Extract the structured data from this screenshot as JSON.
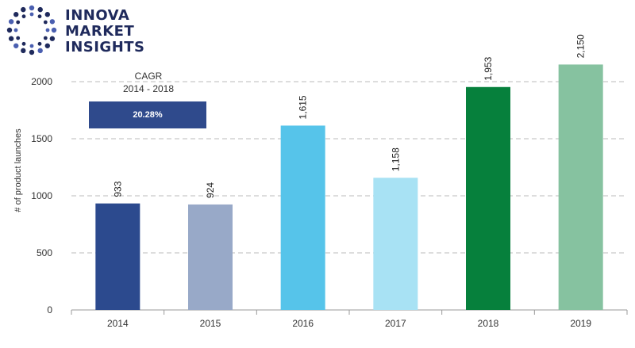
{
  "brand": {
    "lines": [
      "INNOVA",
      "MARKET",
      "INSIGHTS"
    ]
  },
  "cagr": {
    "label": "CAGR",
    "period": "2014 - 2018",
    "value": "20.28%"
  },
  "chart_data": {
    "type": "bar",
    "categories": [
      "2014",
      "2015",
      "2016",
      "2017",
      "2018",
      "2019"
    ],
    "values": [
      933,
      924,
      1615,
      1158,
      1953,
      2150
    ],
    "value_labels": [
      "933",
      "924",
      "1,615",
      "1,158",
      "1,953",
      "2,150"
    ],
    "bar_colors": [
      "#2c4a8e",
      "#98a9c8",
      "#56c4ea",
      "#a8e2f4",
      "#06803c",
      "#86c2a0"
    ],
    "ylabel": "# of product launches",
    "xlabel": "",
    "ylim": [
      0,
      2000
    ],
    "yticks": [
      0,
      500,
      1000,
      1500,
      2000
    ],
    "grid": true
  }
}
